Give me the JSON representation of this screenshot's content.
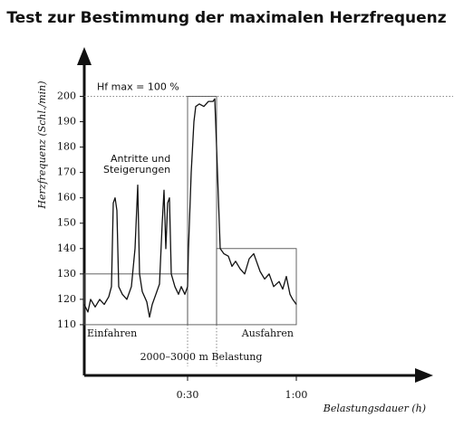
{
  "chart_data": {
    "type": "line",
    "title": "Test zur Bestimmung der maximalen Herzfrequenz",
    "y_label": "Herzfrequenz (Schl./min)",
    "x_label": "Belastungsdauer (h)",
    "xlim": [
      0,
      96
    ],
    "ylim": [
      90,
      218
    ],
    "xticks": [
      {
        "value": 30,
        "label": "0:30"
      },
      {
        "value": 60,
        "label": "1:00"
      }
    ],
    "yticks": [
      110,
      120,
      130,
      140,
      150,
      160,
      170,
      180,
      190,
      200
    ],
    "hline": {
      "value": 200,
      "label": "Hf max = 100 %"
    },
    "annotations": [
      "Antritte und",
      "Steigerungen",
      "2000–3000 m Belastung"
    ],
    "zones": [
      {
        "x": [
          0,
          30
        ],
        "y": [
          110,
          130
        ],
        "label": "Einfahren"
      },
      {
        "x": [
          30,
          38
        ],
        "y": [
          110,
          200
        ]
      },
      {
        "x": [
          38,
          60
        ],
        "y": [
          110,
          140
        ],
        "label": "Ausfahren"
      }
    ],
    "series": [
      {
        "color": "#111111",
        "x": [
          1.5,
          2.5,
          3.25,
          4.5,
          5.75,
          7,
          8.25,
          9,
          9.5,
          10,
          10.5,
          11,
          12,
          13.25,
          14.5,
          15.5,
          16.25,
          16.75,
          17.5,
          18.75,
          19.5,
          20.25,
          21.25,
          22.25,
          23,
          23.5,
          24,
          24.5,
          25,
          25.5,
          26.5,
          27.5,
          28.25,
          29.25,
          30,
          30.25,
          31,
          31.75,
          32.25,
          33.25,
          34.5,
          35.75,
          37,
          37.5,
          38,
          38.5,
          39,
          40,
          41.25,
          42.25,
          43.25,
          44.5,
          45.75,
          47,
          48.25,
          49,
          50,
          51.25,
          52.5,
          53.75,
          55.25,
          56.25,
          57.25,
          58.25,
          59,
          60
        ],
        "values": [
          118,
          115,
          120,
          117,
          120,
          118,
          121,
          125,
          158,
          160,
          155,
          125,
          122,
          120,
          125,
          140,
          165,
          130,
          123,
          119,
          113,
          118,
          122,
          126,
          150,
          163,
          140,
          158,
          160,
          130,
          125,
          122,
          125,
          122,
          125,
          140,
          170,
          190,
          196,
          197,
          196,
          198,
          198,
          199,
          180,
          160,
          140,
          138,
          137,
          133,
          135,
          132,
          130,
          136,
          138,
          135,
          131,
          128,
          130,
          125,
          127,
          124,
          129,
          122,
          120,
          118
        ]
      }
    ]
  }
}
